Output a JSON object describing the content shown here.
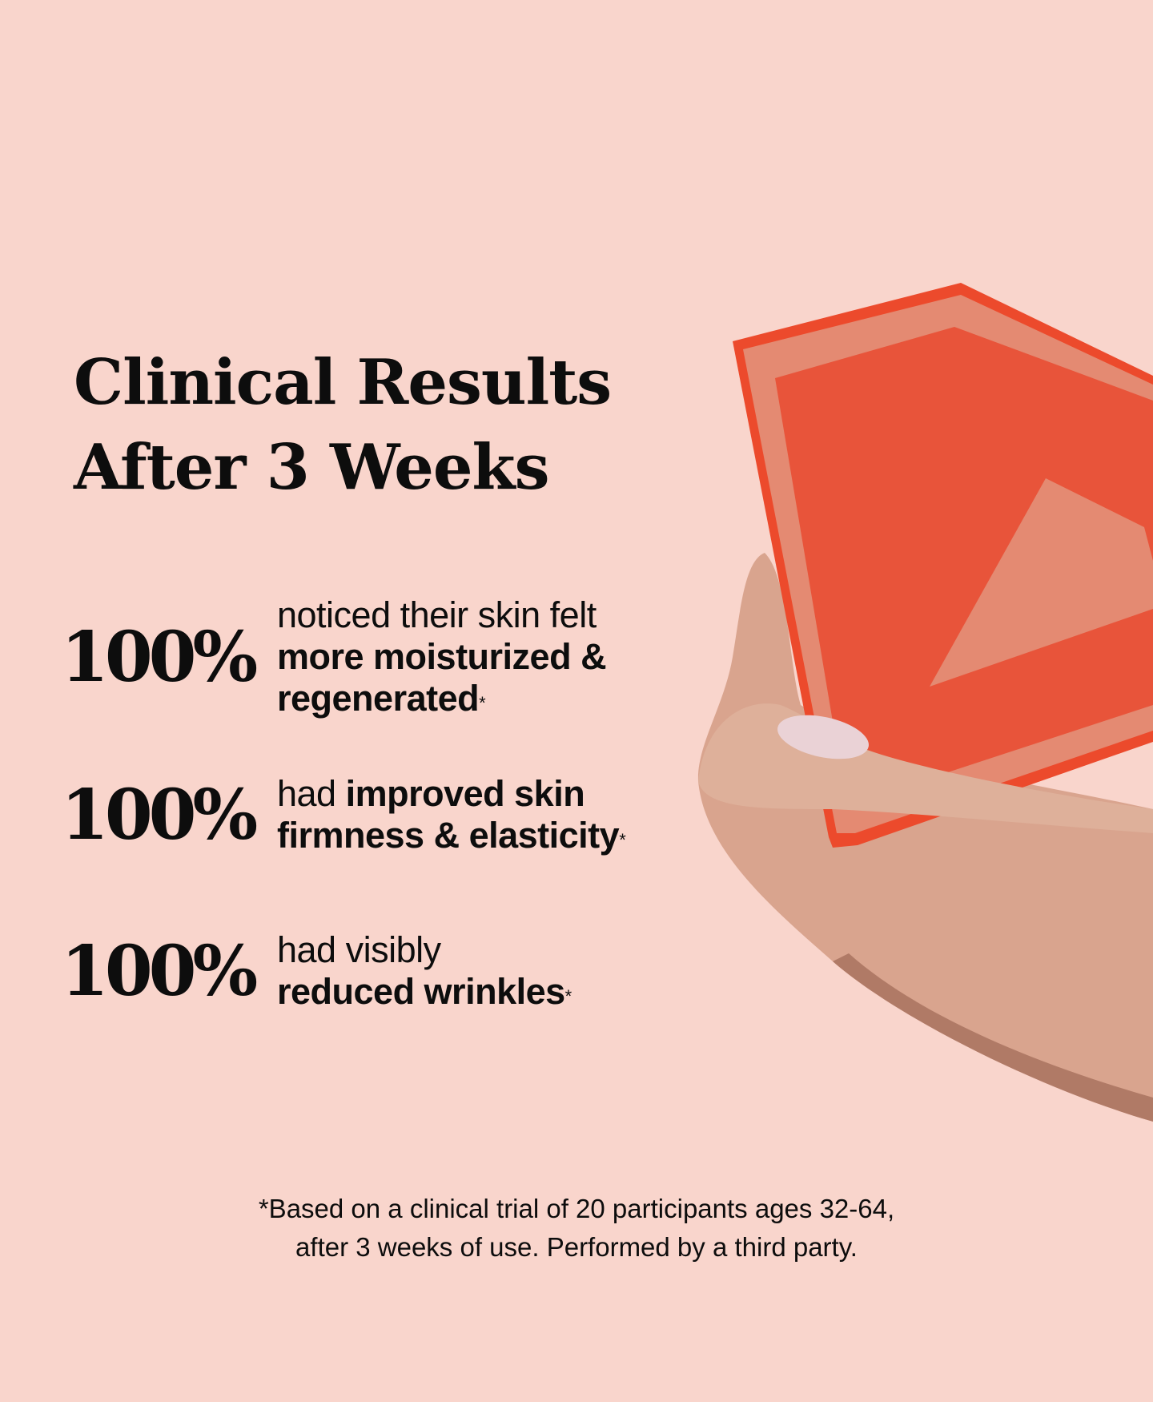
{
  "heading": {
    "line1": "Clinical Results",
    "line2": "After 3 Weeks"
  },
  "stats": [
    {
      "value": "100%",
      "pre": "noticed their skin felt",
      "bold": "more moisturized & regenerated",
      "mark": "*"
    },
    {
      "value": "100%",
      "pre": "had",
      "bold": "improved skin firmness & elasticity",
      "mark": "*"
    },
    {
      "value": "100%",
      "pre": "had visibly",
      "bold": "reduced wrinkles",
      "mark": "*"
    }
  ],
  "footnote": {
    "line1": "*Based on a clinical trial of 20 participants ages 32-64,",
    "line2": "after 3 weeks of use. Performed by a third party."
  },
  "colors": {
    "background": "#f9d5cc",
    "product": "#e8543a",
    "product_light": "#e48a72",
    "text": "#0d0d0d"
  }
}
